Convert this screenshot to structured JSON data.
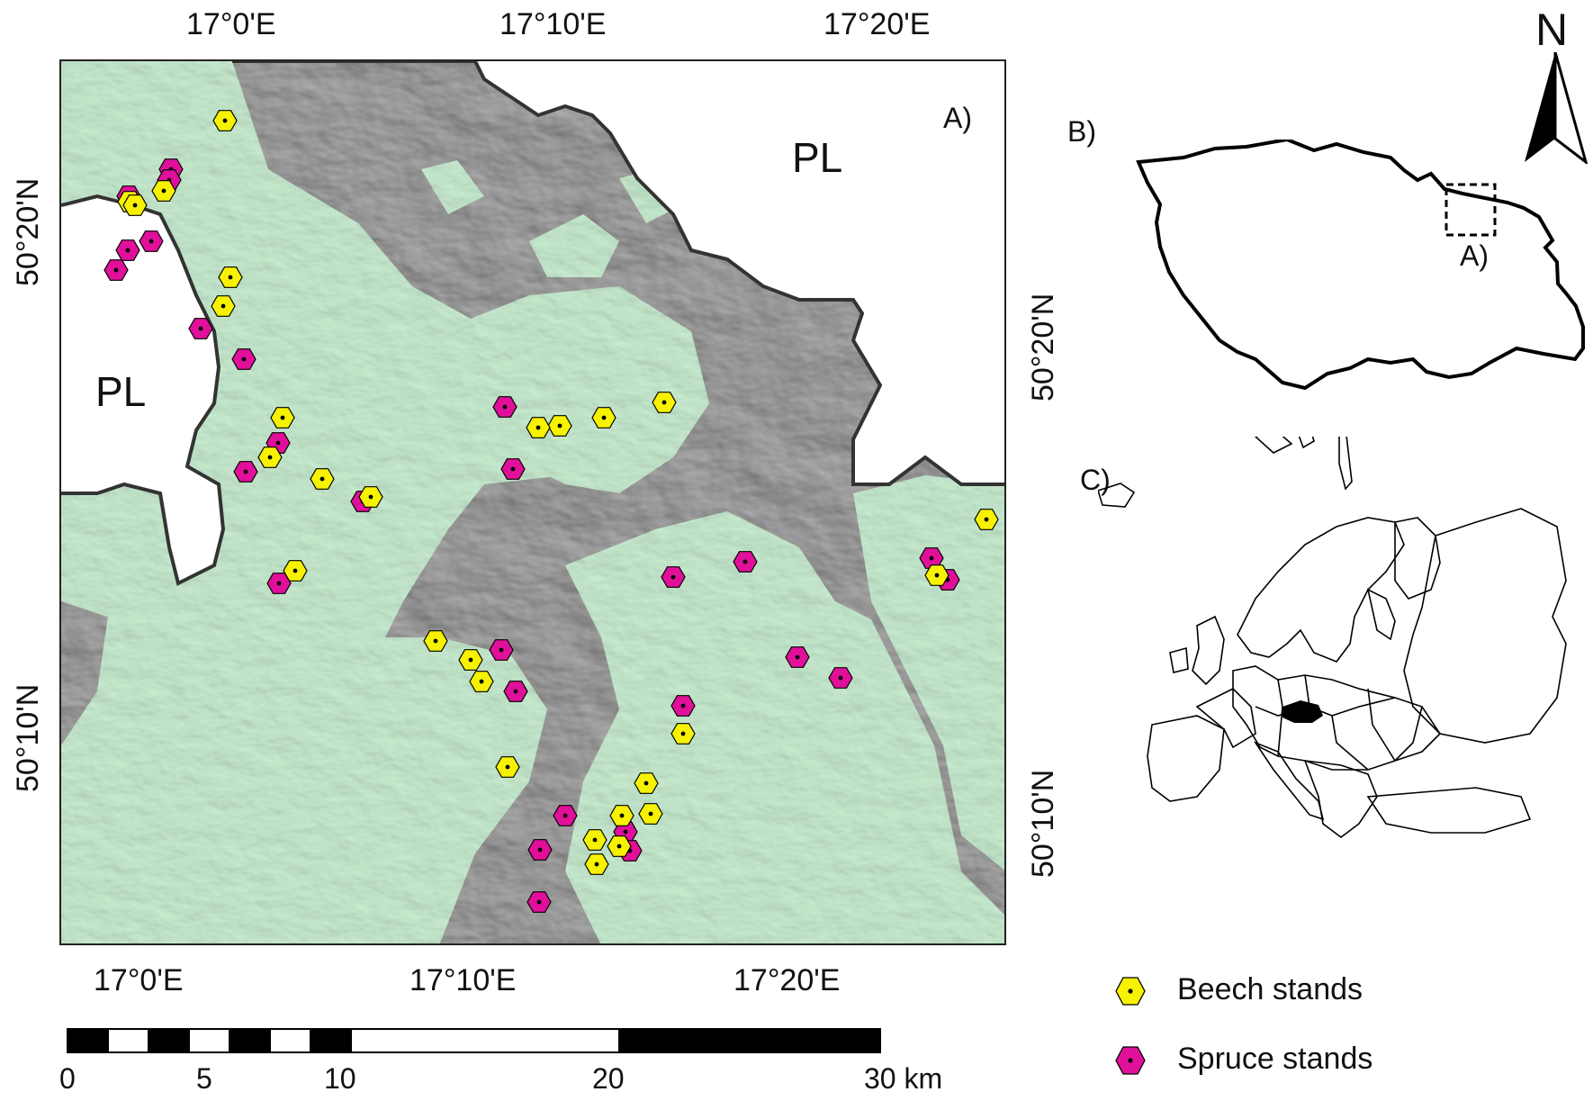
{
  "main_map": {
    "panel_label": "A)",
    "country_labels": [
      "PL",
      "PL"
    ],
    "top_axis_labels": [
      "17°0'E",
      "17°10'E",
      "17°20'E"
    ],
    "bottom_axis_labels": [
      "17°0'E",
      "17°10'E",
      "17°20'E"
    ],
    "left_axis_labels": [
      "50°20'N",
      "50°10'N"
    ],
    "right_axis_labels": [
      "50°20'N",
      "50°10'N"
    ],
    "colors": {
      "forest": "#c8ecd0",
      "relief": "#a8a8a8",
      "border": "#333333",
      "beech": "#f7f200",
      "spruce": "#e0109a"
    }
  },
  "north_arrow": {
    "label": "N"
  },
  "inset_czech": {
    "panel_label": "B)",
    "extent_label": "A)"
  },
  "inset_europe": {
    "panel_label": "C)"
  },
  "legend": {
    "items": [
      {
        "label": "Beech stands",
        "symbol": "beech"
      },
      {
        "label": "Spruce stands",
        "symbol": "spruce"
      }
    ]
  },
  "scale_bar": {
    "ticks": [
      "0",
      "5",
      "10",
      "20",
      "30 km"
    ]
  },
  "sites": {
    "beech": 28,
    "spruce": 28
  }
}
